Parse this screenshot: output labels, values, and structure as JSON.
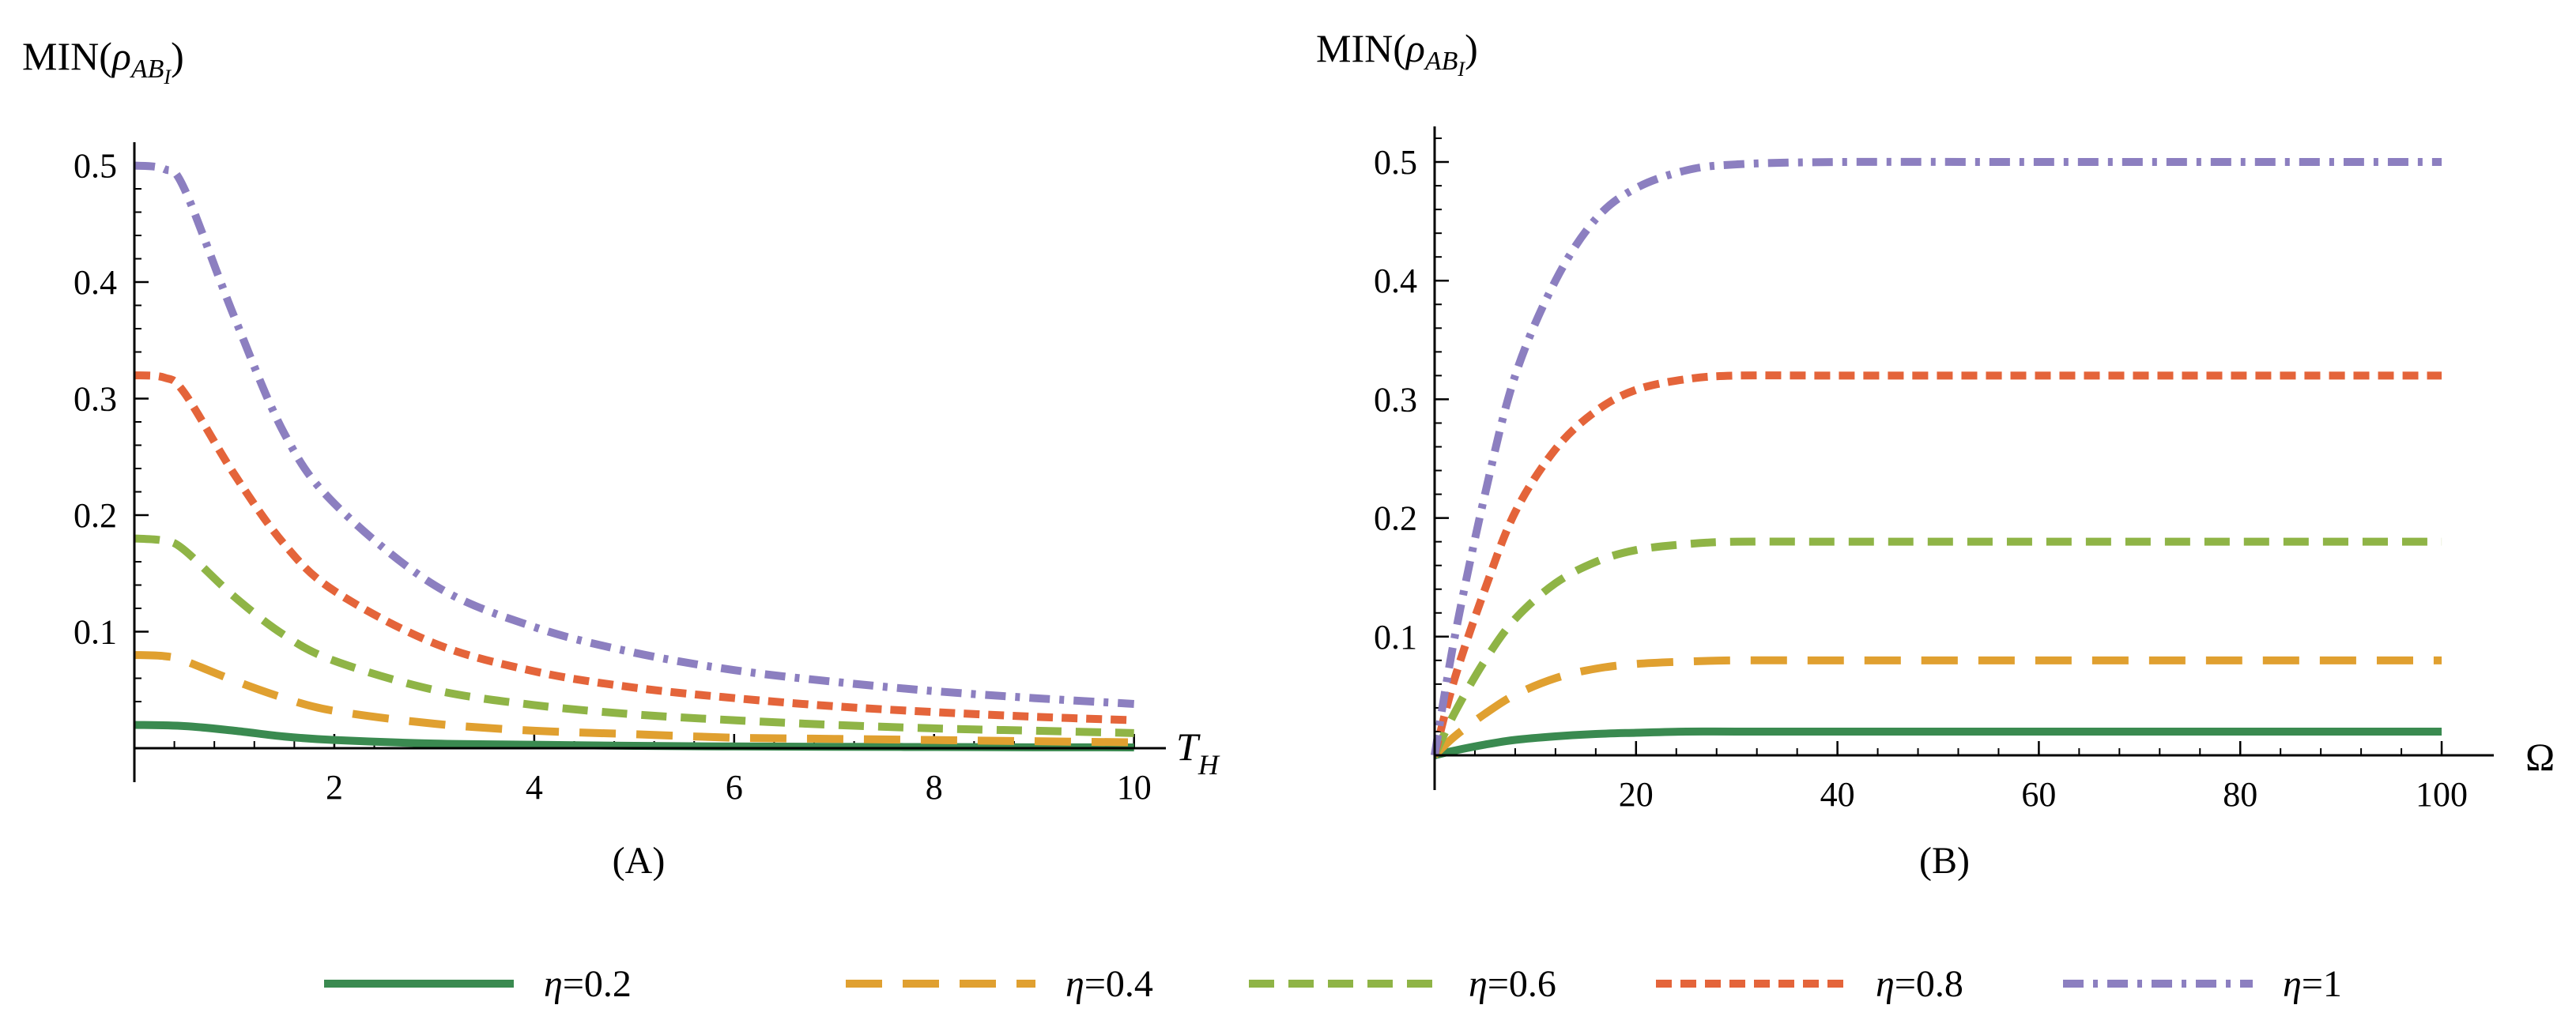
{
  "colors": {
    "eta_0_2": "#3a8a50",
    "eta_0_4": "#e0a030",
    "eta_0_6": "#8fb446",
    "eta_0_8": "#e4643a",
    "eta_1": "#8c7fc0"
  },
  "legend": [
    {
      "symbol": "η",
      "value": "=0.2",
      "style": "solid",
      "color_key": "eta_0_2"
    },
    {
      "symbol": "η",
      "value": "=0.4",
      "style": "longdash",
      "color_key": "eta_0_4"
    },
    {
      "symbol": "η",
      "value": "=0.6",
      "style": "dash",
      "color_key": "eta_0_6"
    },
    {
      "symbol": "η",
      "value": "=0.8",
      "style": "shortdash",
      "color_key": "eta_0_8"
    },
    {
      "symbol": "η",
      "value": "=1",
      "style": "dashdot",
      "color_key": "eta_1"
    }
  ],
  "chart_data": [
    {
      "type": "line",
      "panel_label": "(A)",
      "ylabel": {
        "prefix": "MIN(",
        "rho": "ρ",
        "sub": "AB",
        "subsub": "I",
        "suffix": ")"
      },
      "xlabel": {
        "main": "T",
        "sub": "H"
      },
      "xlim": [
        0,
        10.2
      ],
      "ylim": [
        0,
        0.52
      ],
      "xticks": [
        2,
        4,
        6,
        8,
        10
      ],
      "xtick_labels": [
        "2",
        "4",
        "6",
        "8",
        "10"
      ],
      "yticks": [
        0.1,
        0.2,
        0.3,
        0.4,
        0.5
      ],
      "ytick_labels": [
        "0.1",
        "0.2",
        "0.3",
        "0.4",
        "0.5"
      ],
      "series": [
        {
          "name": "η=0.2",
          "color_key": "eta_0_2",
          "style": "solid",
          "x": [
            0,
            0.5,
            1,
            1.5,
            2,
            3,
            4,
            5,
            6,
            7,
            8,
            9,
            10
          ],
          "y": [
            0.02,
            0.019,
            0.015,
            0.01,
            0.007,
            0.004,
            0.003,
            0.002,
            0.0015,
            0.0012,
            0.001,
            0.0008,
            0.0007
          ]
        },
        {
          "name": "η=0.4",
          "color_key": "eta_0_4",
          "style": "longdash",
          "x": [
            0,
            0.3,
            0.5,
            1,
            1.5,
            2,
            3,
            4,
            5,
            6,
            7,
            8,
            9,
            10
          ],
          "y": [
            0.08,
            0.079,
            0.075,
            0.058,
            0.043,
            0.032,
            0.021,
            0.015,
            0.012,
            0.009,
            0.008,
            0.007,
            0.006,
            0.005
          ]
        },
        {
          "name": "η=0.6",
          "color_key": "eta_0_6",
          "style": "dash",
          "x": [
            0,
            0.3,
            0.5,
            1,
            1.5,
            2,
            3,
            4,
            5,
            6,
            7,
            8,
            9,
            10
          ],
          "y": [
            0.18,
            0.178,
            0.17,
            0.13,
            0.097,
            0.075,
            0.05,
            0.037,
            0.029,
            0.024,
            0.02,
            0.017,
            0.015,
            0.013
          ]
        },
        {
          "name": "η=0.8",
          "color_key": "eta_0_8",
          "style": "shortdash",
          "x": [
            0,
            0.3,
            0.5,
            1,
            1.5,
            2,
            3,
            4,
            5,
            6,
            7,
            8,
            9,
            10
          ],
          "y": [
            0.32,
            0.318,
            0.305,
            0.235,
            0.175,
            0.135,
            0.09,
            0.066,
            0.052,
            0.043,
            0.036,
            0.031,
            0.027,
            0.024
          ]
        },
        {
          "name": "η=1",
          "color_key": "eta_1",
          "style": "dashdot",
          "x": [
            0,
            0.3,
            0.5,
            1,
            1.5,
            2,
            3,
            4,
            5,
            6,
            7,
            8,
            9,
            10
          ],
          "y": [
            0.5,
            0.497,
            0.48,
            0.37,
            0.27,
            0.21,
            0.14,
            0.104,
            0.082,
            0.067,
            0.057,
            0.049,
            0.043,
            0.038
          ]
        }
      ]
    },
    {
      "type": "line",
      "panel_label": "(B)",
      "ylabel": {
        "prefix": "MIN(",
        "rho": "ρ",
        "sub": "AB",
        "subsub": "I",
        "suffix": ")"
      },
      "xlabel": {
        "main": "Ω",
        "sub": ""
      },
      "xlim": [
        0,
        104
      ],
      "ylim": [
        0,
        0.53
      ],
      "xticks": [
        20,
        40,
        60,
        80,
        100
      ],
      "xtick_labels": [
        "20",
        "40",
        "60",
        "80",
        "100"
      ],
      "yticks": [
        0.1,
        0.2,
        0.3,
        0.4,
        0.5
      ],
      "ytick_labels": [
        "0.1",
        "0.2",
        "0.3",
        "0.4",
        "0.5"
      ],
      "series": [
        {
          "name": "η=0.2",
          "color_key": "eta_0_2",
          "style": "solid",
          "x": [
            0,
            2,
            5,
            8,
            12,
            16,
            20,
            25,
            30,
            40,
            60,
            80,
            100
          ],
          "y": [
            0,
            0.004,
            0.009,
            0.013,
            0.016,
            0.018,
            0.019,
            0.02,
            0.02,
            0.02,
            0.02,
            0.02,
            0.02
          ]
        },
        {
          "name": "η=0.4",
          "color_key": "eta_0_4",
          "style": "longdash",
          "x": [
            0,
            2,
            5,
            8,
            12,
            16,
            20,
            25,
            30,
            40,
            60,
            80,
            100
          ],
          "y": [
            0,
            0.016,
            0.035,
            0.051,
            0.065,
            0.073,
            0.077,
            0.079,
            0.08,
            0.08,
            0.08,
            0.08,
            0.08
          ]
        },
        {
          "name": "η=0.6",
          "color_key": "eta_0_6",
          "style": "dash",
          "x": [
            0,
            2,
            5,
            8,
            12,
            16,
            20,
            25,
            30,
            40,
            60,
            80,
            100
          ],
          "y": [
            0,
            0.036,
            0.08,
            0.115,
            0.145,
            0.163,
            0.173,
            0.178,
            0.18,
            0.18,
            0.18,
            0.18,
            0.18
          ]
        },
        {
          "name": "η=0.8",
          "color_key": "eta_0_8",
          "style": "shortdash",
          "x": [
            0,
            2,
            5,
            8,
            12,
            16,
            20,
            25,
            30,
            40,
            60,
            80,
            100
          ],
          "y": [
            0,
            0.065,
            0.14,
            0.205,
            0.258,
            0.29,
            0.308,
            0.317,
            0.32,
            0.32,
            0.32,
            0.32,
            0.32
          ]
        },
        {
          "name": "η=1",
          "color_key": "eta_1",
          "style": "dashdot",
          "x": [
            0,
            2,
            5,
            8,
            12,
            16,
            20,
            25,
            30,
            40,
            60,
            80,
            100
          ],
          "y": [
            0,
            0.1,
            0.22,
            0.32,
            0.4,
            0.452,
            0.478,
            0.493,
            0.498,
            0.5,
            0.5,
            0.5,
            0.5
          ]
        }
      ]
    }
  ]
}
